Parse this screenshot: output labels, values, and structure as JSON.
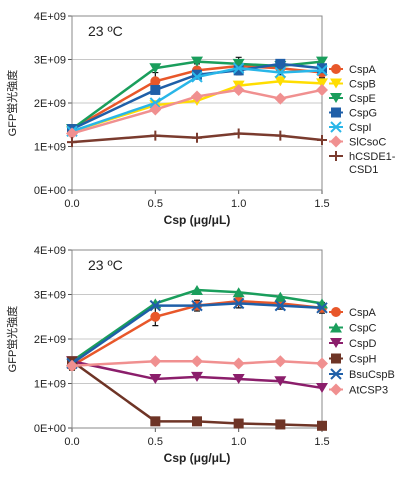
{
  "chart_data": [
    {
      "type": "line",
      "title": "",
      "annotation": "23 ºC",
      "xlabel": "Csp (μg/μL)",
      "ylabel": "GFP蛍光強度",
      "xlim": [
        0,
        1.5
      ],
      "ylim": [
        0,
        4000000000
      ],
      "x_ticks": [
        "0.0",
        "0.5",
        "1.0",
        "1.5"
      ],
      "y_ticks": [
        "0E+00",
        "1E+09",
        "2E+09",
        "3E+09",
        "4E+09"
      ],
      "grid": "horizontal",
      "legend_position": "right",
      "x": [
        0,
        0.5,
        0.75,
        1.0,
        1.25,
        1.5
      ],
      "series": [
        {
          "name": "CspA",
          "color": "#e8572a",
          "marker": "circle",
          "values": [
            1400000000,
            2500000000,
            2750000000,
            2850000000,
            2800000000,
            2700000000
          ],
          "errors": [
            100000000,
            200000000,
            150000000,
            200000000,
            150000000,
            120000000
          ]
        },
        {
          "name": "CspB",
          "color": "#ffdd00",
          "marker": "triangle-down",
          "values": [
            1350000000,
            1950000000,
            2050000000,
            2400000000,
            2500000000,
            2450000000
          ]
        },
        {
          "name": "CspE",
          "color": "#1a9e5c",
          "marker": "triangle-down",
          "values": [
            1400000000,
            2800000000,
            2950000000,
            2900000000,
            2850000000,
            2950000000
          ]
        },
        {
          "name": "CspG",
          "color": "#1f5fa8",
          "marker": "square",
          "values": [
            1400000000,
            2300000000,
            2650000000,
            2750000000,
            2900000000,
            2800000000
          ]
        },
        {
          "name": "CspI",
          "color": "#29b6e8",
          "marker": "x",
          "values": [
            1350000000,
            2000000000,
            2600000000,
            2800000000,
            2700000000,
            2750000000
          ]
        },
        {
          "name": "SlCsoC",
          "color": "#f09090",
          "marker": "diamond",
          "values": [
            1300000000,
            1850000000,
            2150000000,
            2300000000,
            2100000000,
            2300000000
          ]
        },
        {
          "name": "hCSDE1-\nCSD1",
          "color": "#7a3b2e",
          "marker": "plus",
          "values": [
            1100000000,
            1250000000,
            1200000000,
            1300000000,
            1250000000,
            1150000000
          ]
        }
      ],
      "legend_lines": [
        [
          "CspA"
        ],
        [
          "CspB"
        ],
        [
          "CspE"
        ],
        [
          "CspG"
        ],
        [
          "CspI"
        ],
        [
          "SlCsoC"
        ],
        [
          "hCSDE1-",
          "CSD1"
        ]
      ]
    },
    {
      "type": "line",
      "title": "",
      "annotation": "23 ºC",
      "xlabel": "Csp (μg/μL)",
      "ylabel": "GFP蛍光強度",
      "xlim": [
        0,
        1.5
      ],
      "ylim": [
        0,
        4000000000
      ],
      "x_ticks": [
        "0.0",
        "0.5",
        "1.0",
        "1.5"
      ],
      "y_ticks": [
        "0E+00",
        "1E+09",
        "2E+09",
        "3E+09",
        "4E+09"
      ],
      "grid": "horizontal",
      "legend_position": "right",
      "x": [
        0,
        0.5,
        0.75,
        1.0,
        1.25,
        1.5
      ],
      "series": [
        {
          "name": "CspA",
          "color": "#e8572a",
          "marker": "circle",
          "values": [
            1400000000,
            2500000000,
            2750000000,
            2850000000,
            2800000000,
            2700000000
          ],
          "errors": [
            100000000,
            200000000,
            120000000,
            150000000,
            130000000,
            120000000
          ]
        },
        {
          "name": "CspC",
          "color": "#1a9e5c",
          "marker": "triangle-up",
          "values": [
            1500000000,
            2800000000,
            3100000000,
            3050000000,
            2950000000,
            2800000000
          ]
        },
        {
          "name": "CspD",
          "color": "#8b1e6b",
          "marker": "triangle-down",
          "values": [
            1500000000,
            1100000000,
            1150000000,
            1100000000,
            1050000000,
            900000000
          ]
        },
        {
          "name": "CspH",
          "color": "#6e3426",
          "marker": "square",
          "values": [
            1500000000,
            150000000,
            150000000,
            100000000,
            80000000,
            50000000
          ]
        },
        {
          "name": "BsuCspB",
          "color": "#1f5fa8",
          "marker": "x",
          "values": [
            1450000000,
            2750000000,
            2750000000,
            2800000000,
            2750000000,
            2700000000
          ]
        },
        {
          "name": "AtCSP3",
          "color": "#f09090",
          "marker": "diamond",
          "values": [
            1400000000,
            1500000000,
            1500000000,
            1450000000,
            1500000000,
            1450000000
          ]
        }
      ],
      "legend_lines": [
        [
          "CspA"
        ],
        [
          "CspC"
        ],
        [
          "CspD"
        ],
        [
          "CspH"
        ],
        [
          "BsuCspB"
        ],
        [
          "AtCSP3"
        ]
      ]
    }
  ]
}
